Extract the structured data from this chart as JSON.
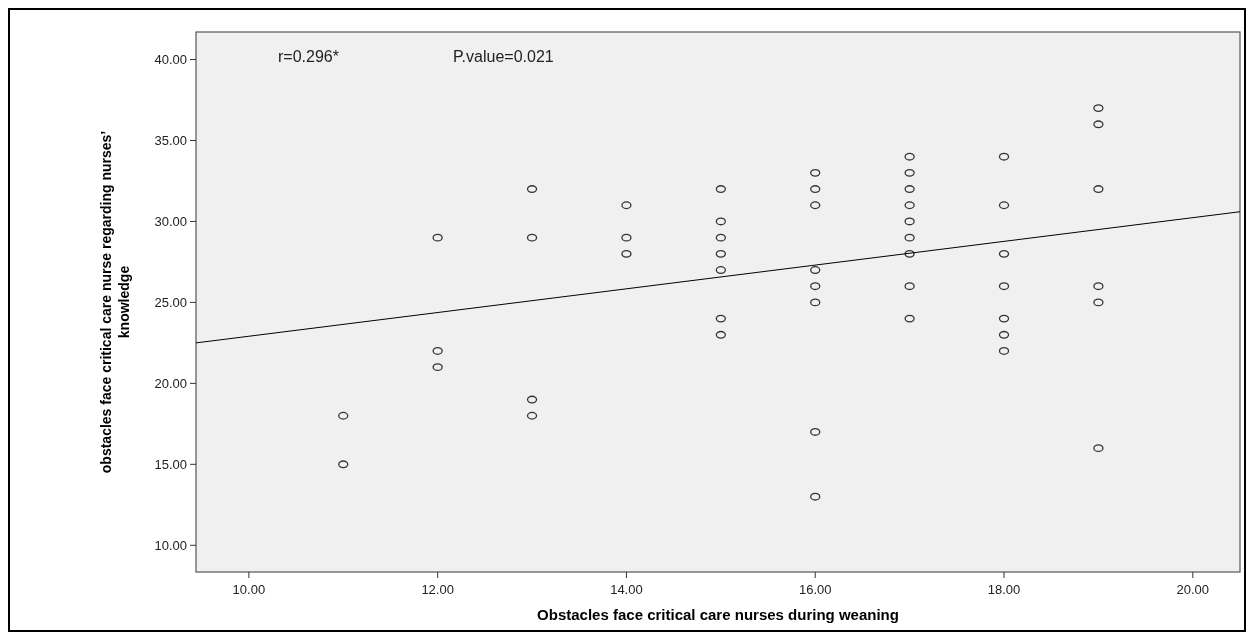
{
  "chart_data": {
    "type": "scatter",
    "xlabel": "Obstacles face critical care nurses during weaning",
    "ylabel": "obstacles face critical care nurse  regarding nurses’ knowledge",
    "annotations": [
      "r=0.296*",
      "P.value=0.021"
    ],
    "xlim": [
      9.44,
      20.5
    ],
    "ylim": [
      8.35,
      41.7
    ],
    "xticks": [
      {
        "value": 10,
        "label": "10.00"
      },
      {
        "value": 12,
        "label": "12.00"
      },
      {
        "value": 14,
        "label": "14.00"
      },
      {
        "value": 16,
        "label": "16.00"
      },
      {
        "value": 18,
        "label": "18.00"
      },
      {
        "value": 20,
        "label": "20.00"
      }
    ],
    "yticks": [
      {
        "value": 10,
        "label": "10.00"
      },
      {
        "value": 15,
        "label": "15.00"
      },
      {
        "value": 20,
        "label": "20.00"
      },
      {
        "value": 25,
        "label": "25.00"
      },
      {
        "value": 30,
        "label": "30.00"
      },
      {
        "value": 35,
        "label": "35.00"
      },
      {
        "value": 40,
        "label": "40.00"
      }
    ],
    "grid": false,
    "marker": "circle",
    "series": [
      {
        "color": "#333333",
        "x": [
          11,
          11,
          12,
          12,
          12,
          13,
          13,
          13,
          13,
          14,
          14,
          14,
          15,
          15,
          15,
          15,
          15,
          15,
          15,
          16,
          16,
          16,
          16,
          16,
          16,
          16,
          16,
          17,
          17,
          17,
          17,
          17,
          17,
          17,
          17,
          17,
          18,
          18,
          18,
          18,
          18,
          18,
          18,
          19,
          19,
          19,
          19,
          19,
          19
        ],
        "values": [
          18,
          15,
          29,
          22,
          21,
          32,
          29,
          19,
          18,
          31,
          29,
          28,
          32,
          30,
          29,
          28,
          27,
          24,
          23,
          33,
          32,
          31,
          27,
          26,
          25,
          17,
          13,
          34,
          33,
          32,
          31,
          30,
          29,
          28,
          26,
          24,
          34,
          31,
          28,
          26,
          24,
          23,
          22,
          37,
          36,
          32,
          26,
          25,
          16
        ]
      },
      {
        "type": "line",
        "color": "#000000",
        "marker": "none",
        "x": [
          9.44,
          20.5
        ],
        "values": [
          22.5,
          30.6
        ]
      }
    ]
  }
}
